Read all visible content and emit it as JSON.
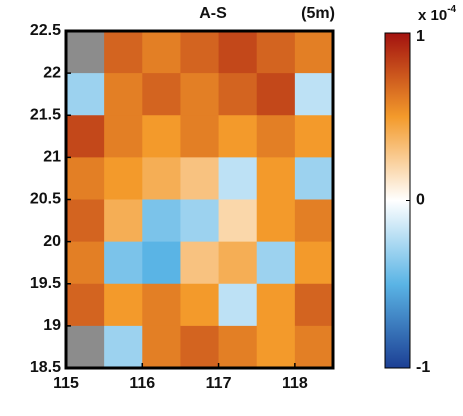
{
  "chart_data": {
    "type": "heatmap",
    "title": "A-S",
    "annotation": "(5m)",
    "xlim": [
      115,
      118.5
    ],
    "xticks": [
      115,
      116,
      117,
      118
    ],
    "ylim": [
      18.5,
      22.5
    ],
    "yticks": [
      18.5,
      19,
      19.5,
      20,
      20.5,
      21,
      21.5,
      22,
      22.5
    ],
    "z": [
      [
        null,
        0.7,
        0.6,
        0.7,
        0.8,
        0.7,
        0.6
      ],
      [
        -0.3,
        0.6,
        0.7,
        0.6,
        0.7,
        0.8,
        -0.2
      ],
      [
        0.8,
        0.6,
        0.5,
        0.6,
        0.5,
        0.6,
        0.5
      ],
      [
        0.6,
        0.5,
        0.4,
        0.3,
        -0.2,
        0.5,
        -0.3
      ],
      [
        0.7,
        0.4,
        -0.4,
        -0.3,
        0.2,
        0.5,
        0.6
      ],
      [
        0.6,
        -0.4,
        -0.5,
        0.3,
        0.4,
        -0.3,
        0.5
      ],
      [
        0.7,
        0.5,
        0.6,
        0.5,
        -0.2,
        0.5,
        0.7
      ],
      [
        null,
        -0.3,
        0.6,
        0.7,
        0.6,
        0.5,
        0.6
      ]
    ],
    "clim": [
      -1,
      1
    ],
    "cticks": [
      -1,
      0,
      1
    ],
    "colorbar_unit": "x 10",
    "colorbar_exponent": "-4",
    "colormap": [
      "#1c3f94",
      "#5ab4e5",
      "#ffffff",
      "#f39a2b",
      "#a3120f"
    ],
    "nan_color": "#8c8c8c"
  }
}
